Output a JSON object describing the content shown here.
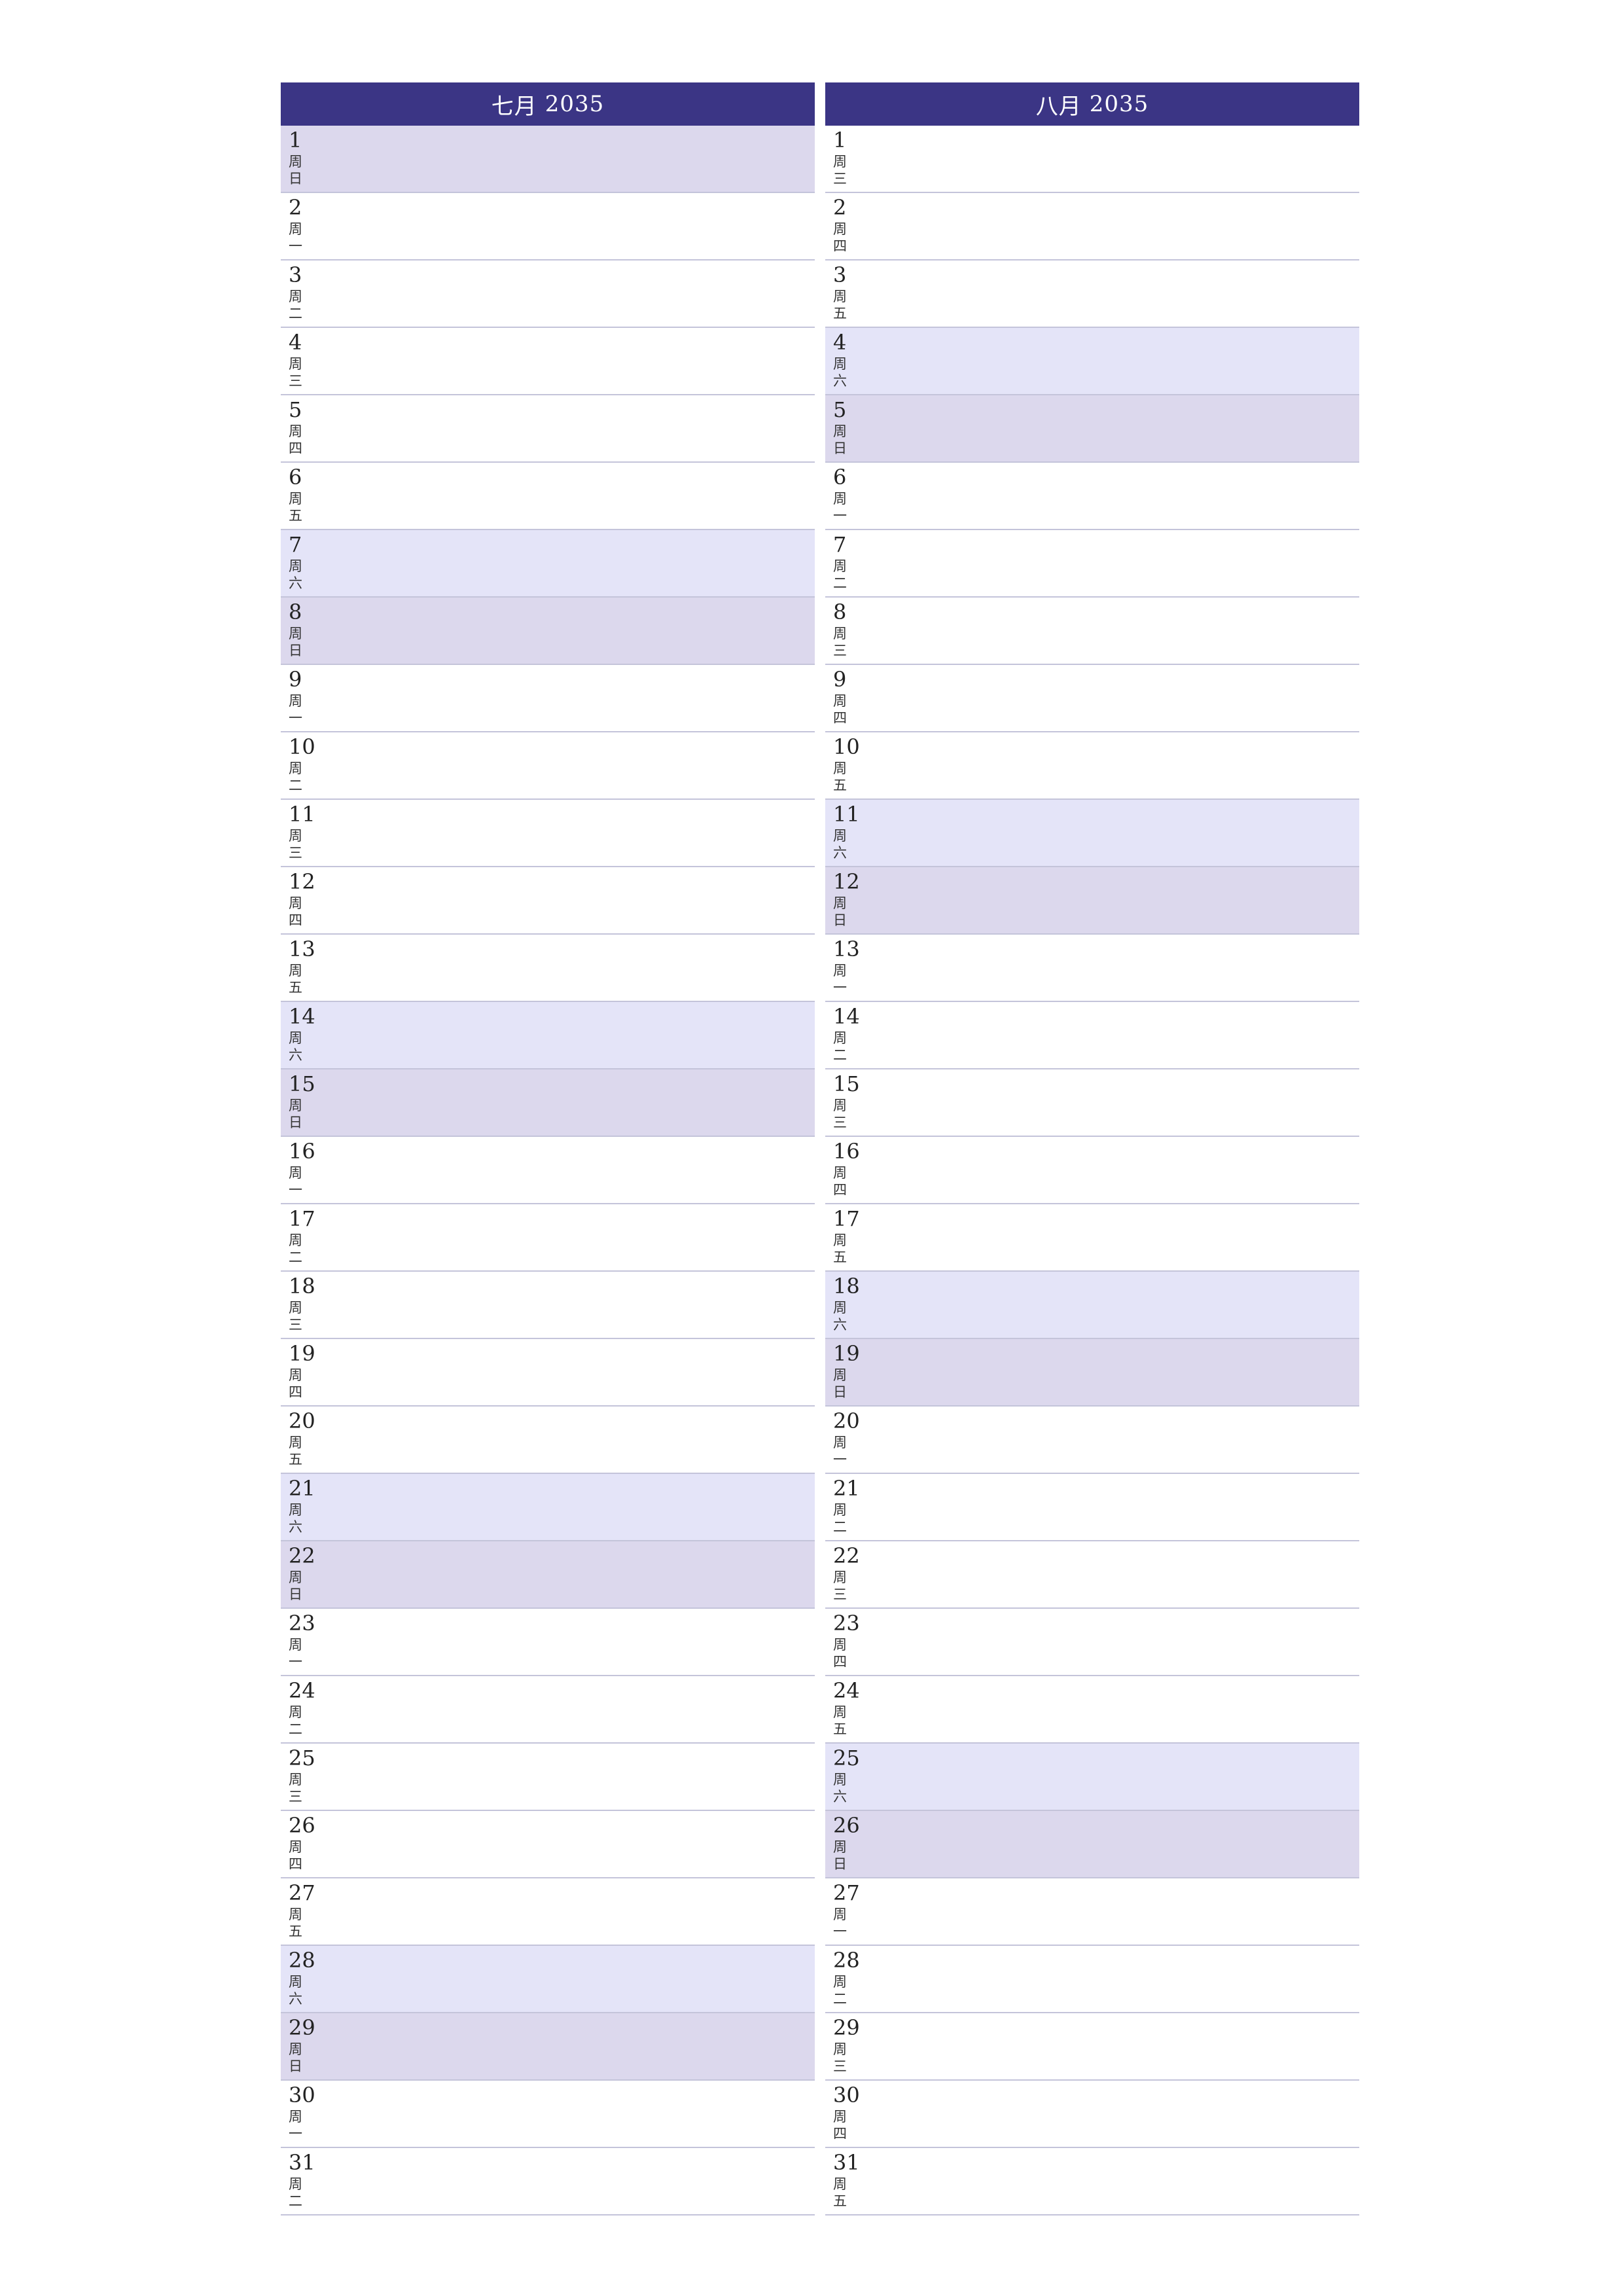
{
  "colors": {
    "header_bg": "#3b3585",
    "saturday_bg": "#e4e4f8",
    "sunday_bg": "#dcd8ed",
    "row_line": "#c4c4da"
  },
  "months": [
    {
      "name": "七月",
      "year": "2035",
      "days": [
        {
          "num": "1",
          "prefix": "周",
          "wd": "日",
          "type": "sun"
        },
        {
          "num": "2",
          "prefix": "周",
          "wd": "一",
          "type": ""
        },
        {
          "num": "3",
          "prefix": "周",
          "wd": "二",
          "type": ""
        },
        {
          "num": "4",
          "prefix": "周",
          "wd": "三",
          "type": ""
        },
        {
          "num": "5",
          "prefix": "周",
          "wd": "四",
          "type": ""
        },
        {
          "num": "6",
          "prefix": "周",
          "wd": "五",
          "type": ""
        },
        {
          "num": "7",
          "prefix": "周",
          "wd": "六",
          "type": "sat"
        },
        {
          "num": "8",
          "prefix": "周",
          "wd": "日",
          "type": "sun"
        },
        {
          "num": "9",
          "prefix": "周",
          "wd": "一",
          "type": ""
        },
        {
          "num": "10",
          "prefix": "周",
          "wd": "二",
          "type": ""
        },
        {
          "num": "11",
          "prefix": "周",
          "wd": "三",
          "type": ""
        },
        {
          "num": "12",
          "prefix": "周",
          "wd": "四",
          "type": ""
        },
        {
          "num": "13",
          "prefix": "周",
          "wd": "五",
          "type": ""
        },
        {
          "num": "14",
          "prefix": "周",
          "wd": "六",
          "type": "sat"
        },
        {
          "num": "15",
          "prefix": "周",
          "wd": "日",
          "type": "sun"
        },
        {
          "num": "16",
          "prefix": "周",
          "wd": "一",
          "type": ""
        },
        {
          "num": "17",
          "prefix": "周",
          "wd": "二",
          "type": ""
        },
        {
          "num": "18",
          "prefix": "周",
          "wd": "三",
          "type": ""
        },
        {
          "num": "19",
          "prefix": "周",
          "wd": "四",
          "type": ""
        },
        {
          "num": "20",
          "prefix": "周",
          "wd": "五",
          "type": ""
        },
        {
          "num": "21",
          "prefix": "周",
          "wd": "六",
          "type": "sat"
        },
        {
          "num": "22",
          "prefix": "周",
          "wd": "日",
          "type": "sun"
        },
        {
          "num": "23",
          "prefix": "周",
          "wd": "一",
          "type": ""
        },
        {
          "num": "24",
          "prefix": "周",
          "wd": "二",
          "type": ""
        },
        {
          "num": "25",
          "prefix": "周",
          "wd": "三",
          "type": ""
        },
        {
          "num": "26",
          "prefix": "周",
          "wd": "四",
          "type": ""
        },
        {
          "num": "27",
          "prefix": "周",
          "wd": "五",
          "type": ""
        },
        {
          "num": "28",
          "prefix": "周",
          "wd": "六",
          "type": "sat"
        },
        {
          "num": "29",
          "prefix": "周",
          "wd": "日",
          "type": "sun"
        },
        {
          "num": "30",
          "prefix": "周",
          "wd": "一",
          "type": ""
        },
        {
          "num": "31",
          "prefix": "周",
          "wd": "二",
          "type": ""
        }
      ]
    },
    {
      "name": "八月",
      "year": "2035",
      "days": [
        {
          "num": "1",
          "prefix": "周",
          "wd": "三",
          "type": ""
        },
        {
          "num": "2",
          "prefix": "周",
          "wd": "四",
          "type": ""
        },
        {
          "num": "3",
          "prefix": "周",
          "wd": "五",
          "type": ""
        },
        {
          "num": "4",
          "prefix": "周",
          "wd": "六",
          "type": "sat"
        },
        {
          "num": "5",
          "prefix": "周",
          "wd": "日",
          "type": "sun"
        },
        {
          "num": "6",
          "prefix": "周",
          "wd": "一",
          "type": ""
        },
        {
          "num": "7",
          "prefix": "周",
          "wd": "二",
          "type": ""
        },
        {
          "num": "8",
          "prefix": "周",
          "wd": "三",
          "type": ""
        },
        {
          "num": "9",
          "prefix": "周",
          "wd": "四",
          "type": ""
        },
        {
          "num": "10",
          "prefix": "周",
          "wd": "五",
          "type": ""
        },
        {
          "num": "11",
          "prefix": "周",
          "wd": "六",
          "type": "sat"
        },
        {
          "num": "12",
          "prefix": "周",
          "wd": "日",
          "type": "sun"
        },
        {
          "num": "13",
          "prefix": "周",
          "wd": "一",
          "type": ""
        },
        {
          "num": "14",
          "prefix": "周",
          "wd": "二",
          "type": ""
        },
        {
          "num": "15",
          "prefix": "周",
          "wd": "三",
          "type": ""
        },
        {
          "num": "16",
          "prefix": "周",
          "wd": "四",
          "type": ""
        },
        {
          "num": "17",
          "prefix": "周",
          "wd": "五",
          "type": ""
        },
        {
          "num": "18",
          "prefix": "周",
          "wd": "六",
          "type": "sat"
        },
        {
          "num": "19",
          "prefix": "周",
          "wd": "日",
          "type": "sun"
        },
        {
          "num": "20",
          "prefix": "周",
          "wd": "一",
          "type": ""
        },
        {
          "num": "21",
          "prefix": "周",
          "wd": "二",
          "type": ""
        },
        {
          "num": "22",
          "prefix": "周",
          "wd": "三",
          "type": ""
        },
        {
          "num": "23",
          "prefix": "周",
          "wd": "四",
          "type": ""
        },
        {
          "num": "24",
          "prefix": "周",
          "wd": "五",
          "type": ""
        },
        {
          "num": "25",
          "prefix": "周",
          "wd": "六",
          "type": "sat"
        },
        {
          "num": "26",
          "prefix": "周",
          "wd": "日",
          "type": "sun"
        },
        {
          "num": "27",
          "prefix": "周",
          "wd": "一",
          "type": ""
        },
        {
          "num": "28",
          "prefix": "周",
          "wd": "二",
          "type": ""
        },
        {
          "num": "29",
          "prefix": "周",
          "wd": "三",
          "type": ""
        },
        {
          "num": "30",
          "prefix": "周",
          "wd": "四",
          "type": ""
        },
        {
          "num": "31",
          "prefix": "周",
          "wd": "五",
          "type": ""
        }
      ]
    }
  ]
}
